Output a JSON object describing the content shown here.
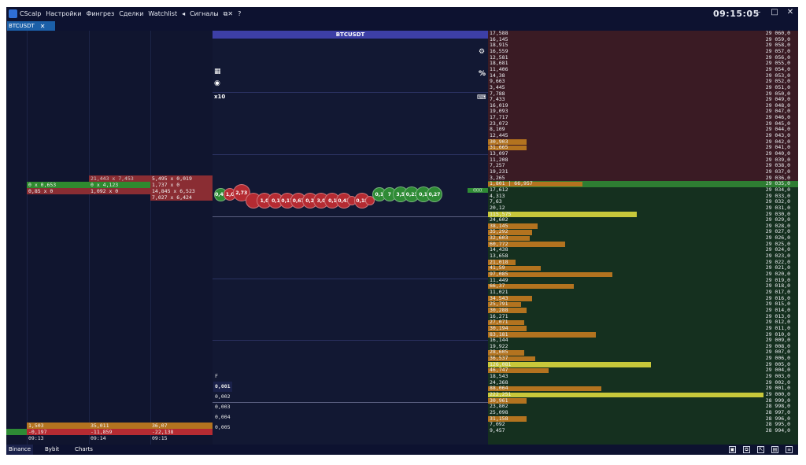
{
  "titlebar": {
    "app_name": "CScalp",
    "menu": [
      "Настройки",
      "Фингрез",
      "Сделки",
      "Watchlist",
      "◂",
      "Сигналы"
    ],
    "menu_icons": [
      "window-detach-icon",
      "help-icon"
    ],
    "menu_icon_glyphs": [
      "⧉✕",
      "?"
    ],
    "clock": "09:15:05",
    "win_min": "–",
    "win_max": "□",
    "win_close": "✕"
  },
  "tab": {
    "label": "BTCUSDT",
    "close": "✕"
  },
  "center": {
    "title": "BTCUSDT",
    "multiplier": "x10",
    "gear": "⚙",
    "percent": "%",
    "sel_label": "F",
    "volumes": [
      "0,001",
      "0,002",
      "0,003",
      "0,004",
      "0,005"
    ]
  },
  "left": {
    "cells": [
      {
        "text": "21,443 x 7,453",
        "col": 2,
        "row": 0,
        "color": "#c9c6c6",
        "bg": "#8a2d33"
      },
      {
        "text": "5,495 x 0,019",
        "col": 3,
        "row": 0,
        "color": "#f0f0f0",
        "bg": "#8a2d33"
      },
      {
        "text": "0 x 0,653",
        "col": 1,
        "row": 1,
        "color": "#f0f0f0",
        "bg": "#2f8a2f"
      },
      {
        "text": "0 x 4,123",
        "col": 2,
        "row": 1,
        "color": "#f0f0f0",
        "bg": "#2f8a2f"
      },
      {
        "text": "1,737 x 0",
        "col": 3,
        "row": 1,
        "color": "#f0f0f0",
        "bg": "#8a2d33"
      },
      {
        "text": "0,85 x 0",
        "col": 1,
        "row": 2,
        "color": "#f0f0f0",
        "bg": "#8a2d33"
      },
      {
        "text": "1,092 x 0",
        "col": 2,
        "row": 2,
        "color": "#f0f0f0",
        "bg": "#8a2d33"
      },
      {
        "text": "14,845 x 6,523",
        "col": 3,
        "row": 2,
        "color": "#f0f0f0",
        "bg": "#8a2d33"
      },
      {
        "text": "7,027 x 6,424",
        "col": 3,
        "row": 3,
        "color": "#f0f0f0",
        "bg": "#8a2d33"
      }
    ],
    "cluster": {
      "row1": [
        "1,503",
        "35,011",
        "36,07"
      ],
      "row2": [
        "-0,197",
        "-11,859",
        "-22,138"
      ],
      "times": [
        "09:13",
        "09:14",
        "09:15"
      ]
    }
  },
  "bubbles": [
    {
      "label": "0,43",
      "color": "#2e8b35",
      "size": 17
    },
    {
      "label": "1,0",
      "color": "#b52b32",
      "size": 16
    },
    {
      "label": "2,73",
      "color": "#b52b32",
      "size": 22
    },
    {
      "label": "",
      "color": "#b52b32",
      "size": 20
    },
    {
      "label": "1,0",
      "color": "#b52b32",
      "size": 20
    },
    {
      "label": "0,1",
      "color": "#b52b32",
      "size": 20
    },
    {
      "label": "0,17",
      "color": "#b52b32",
      "size": 20
    },
    {
      "label": "0,67",
      "color": "#b52b32",
      "size": 20
    },
    {
      "label": "0,2",
      "color": "#b52b32",
      "size": 20
    },
    {
      "label": "3,0",
      "color": "#b52b32",
      "size": 20
    },
    {
      "label": "0,1",
      "color": "#b52b32",
      "size": 20
    },
    {
      "label": "0,43",
      "color": "#b52b32",
      "size": 20
    },
    {
      "label": "",
      "color": "#b52b32",
      "size": 12
    },
    {
      "label": "0,18",
      "color": "#b52b32",
      "size": 20
    },
    {
      "label": "",
      "color": "#b52b32",
      "size": 12
    },
    {
      "label": "0,1",
      "color": "#2e8b35",
      "size": 18
    },
    {
      "label": "7",
      "color": "#2e8b35",
      "size": 18
    },
    {
      "label": "3,5",
      "color": "#2e8b35",
      "size": 20
    },
    {
      "label": "0,23",
      "color": "#2e8b35",
      "size": 20
    },
    {
      "label": "0,1",
      "color": "#2e8b35",
      "size": 20
    },
    {
      "label": "0,27",
      "color": "#2e8b35",
      "size": 20
    }
  ],
  "orderbook": {
    "rows": [
      {
        "vol": "17,588",
        "price": "29 060,0"
      },
      {
        "vol": "16,145",
        "price": "29 059,0"
      },
      {
        "vol": "18,915",
        "price": "29 058,0"
      },
      {
        "vol": "16,559",
        "price": "29 057,0"
      },
      {
        "vol": "12,581",
        "price": "29 056,0"
      },
      {
        "vol": "18,681",
        "price": "29 055,0"
      },
      {
        "vol": "11,406",
        "price": "29 054,0"
      },
      {
        "vol": "14,38",
        "price": "29 053,0"
      },
      {
        "vol": "9,663",
        "price": "29 052,0"
      },
      {
        "vol": "3,445",
        "price": "29 051,0"
      },
      {
        "vol": "7,788",
        "price": "29 050,0"
      },
      {
        "vol": "7,433",
        "price": "29 049,0"
      },
      {
        "vol": "16,019",
        "price": "29 048,0"
      },
      {
        "vol": "19,093",
        "price": "29 047,0"
      },
      {
        "vol": "17,717",
        "price": "29 046,0"
      },
      {
        "vol": "23,072",
        "price": "29 045,0"
      },
      {
        "vol": "8,109",
        "price": "29 044,0"
      },
      {
        "vol": "12,445",
        "price": "29 043,0"
      },
      {
        "vol": "30,903",
        "price": "29 042,0"
      },
      {
        "vol": "31,665",
        "price": "29 041,0"
      },
      {
        "vol": "13,097",
        "price": "29 040,0"
      },
      {
        "vol": "11,208",
        "price": "29 039,0"
      },
      {
        "vol": "7,257",
        "price": "29 038,0"
      },
      {
        "vol": "19,231",
        "price": "29 037,0"
      },
      {
        "vol": "3,265",
        "price": "29 036,0"
      },
      {
        "vol": "1,801 | 66,957",
        "price": "29 035,0"
      },
      {
        "vol": "17,612",
        "price": "29 034,0"
      },
      {
        "vol": "4,313",
        "price": "29 033,0"
      },
      {
        "vol": "7,63",
        "price": "29 032,0"
      },
      {
        "vol": "20,12",
        "price": "29 031,0"
      },
      {
        "vol": "115,575",
        "price": "29 030,0"
      },
      {
        "vol": "24,602",
        "price": "29 029,0"
      },
      {
        "vol": "38,145",
        "price": "29 028,0"
      },
      {
        "vol": "35,292",
        "price": "29 027,0"
      },
      {
        "vol": "32,603",
        "price": "29 026,0"
      },
      {
        "vol": "60,772",
        "price": "29 025,0"
      },
      {
        "vol": "14,438",
        "price": "29 024,0"
      },
      {
        "vol": "13,658",
        "price": "29 023,0"
      },
      {
        "vol": "21,018",
        "price": "29 022,0"
      },
      {
        "vol": "41,59",
        "price": "29 021,0"
      },
      {
        "vol": "97,085",
        "price": "29 020,0"
      },
      {
        "vol": "11,449",
        "price": "29 019,0"
      },
      {
        "vol": "66,37",
        "price": "29 018,0"
      },
      {
        "vol": "11,021",
        "price": "29 017,0"
      },
      {
        "vol": "34,543",
        "price": "29 016,0"
      },
      {
        "vol": "25,791",
        "price": "29 015,0"
      },
      {
        "vol": "30,288",
        "price": "29 014,0"
      },
      {
        "vol": "16,271",
        "price": "29 013,0"
      },
      {
        "vol": "27,071",
        "price": "29 012,0"
      },
      {
        "vol": "30,194",
        "price": "29 011,0"
      },
      {
        "vol": "83,181",
        "price": "29 010,0"
      },
      {
        "vol": "16,144",
        "price": "29 009,0"
      },
      {
        "vol": "19,922",
        "price": "29 008,0"
      },
      {
        "vol": "28,605",
        "price": "29 007,0"
      },
      {
        "vol": "36,537",
        "price": "29 006,0"
      },
      {
        "vol": "126,081",
        "price": "29 005,0"
      },
      {
        "vol": "46,747",
        "price": "29 004,0"
      },
      {
        "vol": "18,543",
        "price": "29 003,0"
      },
      {
        "vol": "24,368",
        "price": "29 002,0"
      },
      {
        "vol": "88,064",
        "price": "29 001,0"
      },
      {
        "vol": "222,251",
        "price": "29 000,0"
      },
      {
        "vol": "30,961",
        "price": "28 999,0"
      },
      {
        "vol": "23,802",
        "price": "28 998,0"
      },
      {
        "vol": "25,098",
        "price": "28 997,0"
      },
      {
        "vol": "31,158",
        "price": "28 996,0"
      },
      {
        "vol": "7,092",
        "price": "28 995,0"
      },
      {
        "vol": "9,457",
        "price": "28 994,0"
      }
    ],
    "bars": {
      "18": 0.14,
      "19": 0.14,
      "25": 0.3,
      "30": 0.54,
      "32": 0.18,
      "33": 0.16,
      "34": 0.15,
      "35": 0.28,
      "38": 0.1,
      "39": 0.19,
      "40": 0.45,
      "42": 0.31,
      "44": 0.16,
      "45": 0.12,
      "46": 0.14,
      "48": 0.13,
      "49": 0.14,
      "50": 0.39,
      "53": 0.13,
      "54": 0.17,
      "55": 0.59,
      "56": 0.22,
      "59": 0.41,
      "60": 1.0,
      "61": 0.14,
      "64": 0.14
    }
  },
  "bottom": {
    "tabs": [
      "Binance",
      "Bybit",
      "Charts"
    ],
    "icons": [
      "layout-icon",
      "window-icon",
      "export-icon",
      "chart-icon",
      "menu-icon"
    ],
    "icon_glyphs": [
      "▣",
      "⧉",
      "⇱",
      "▤",
      "≡"
    ]
  },
  "colors": {
    "accent": "#3d3fa6",
    "ask_bg": "#3a1b24",
    "bid_bg": "#15301f",
    "bar": "#b3731f",
    "bar_big": "#c8c83a",
    "current": "#2e7d32"
  }
}
